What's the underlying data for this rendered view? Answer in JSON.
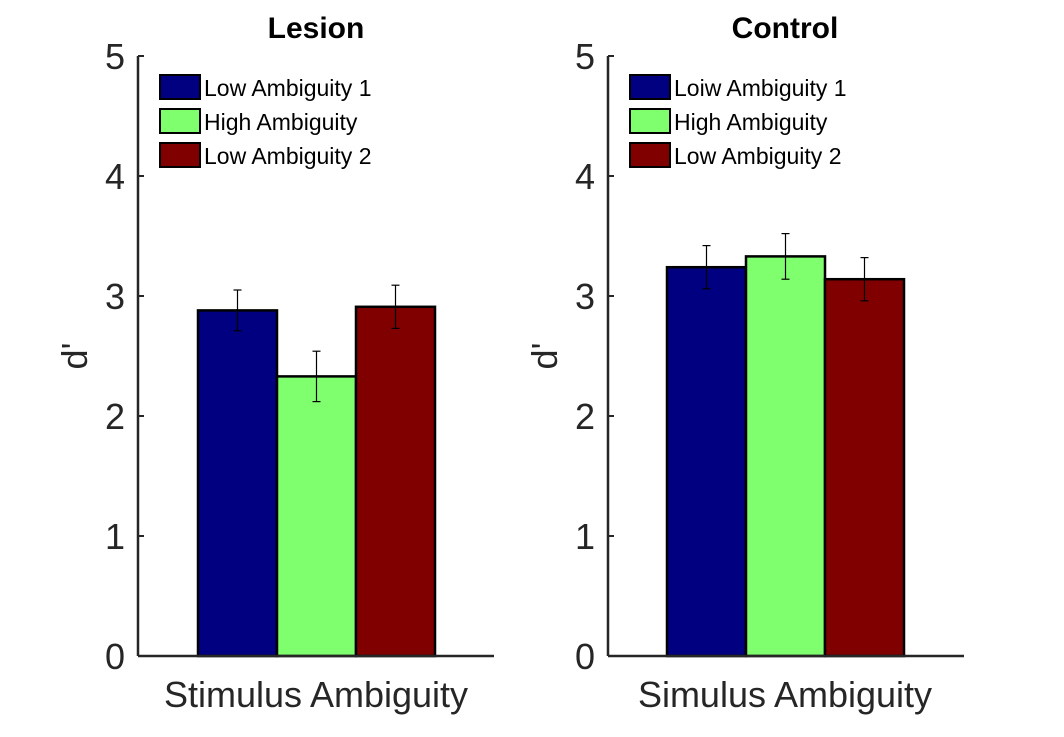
{
  "chart_data": [
    {
      "type": "bar",
      "title": "Lesion",
      "xlabel": "Stimulus Ambiguity",
      "ylabel": "d'",
      "ylim": [
        0,
        5
      ],
      "yticks": [
        "0",
        "1",
        "2",
        "3",
        "4",
        "5"
      ],
      "grid": false,
      "legend_position": "top-left",
      "series": [
        {
          "name": "Low Ambiguity 1",
          "value": 2.88,
          "error": 0.17,
          "color": "#000080"
        },
        {
          "name": "High Ambiguity",
          "value": 2.33,
          "error": 0.21,
          "color": "#80FF6E"
        },
        {
          "name": "Low Ambiguity 2",
          "value": 2.91,
          "error": 0.18,
          "color": "#800000"
        }
      ]
    },
    {
      "type": "bar",
      "title": "Control",
      "xlabel": "Simulus Ambiguity",
      "ylabel": "d'",
      "ylim": [
        0,
        5
      ],
      "yticks": [
        "0",
        "1",
        "2",
        "3",
        "4",
        "5"
      ],
      "grid": false,
      "legend_position": "top-left",
      "series": [
        {
          "name": "Loiw Ambiguity 1",
          "value": 3.24,
          "error": 0.18,
          "color": "#000080"
        },
        {
          "name": "High Ambiguity",
          "value": 3.33,
          "error": 0.19,
          "color": "#80FF6E"
        },
        {
          "name": "Low Ambiguity 2",
          "value": 3.14,
          "error": 0.18,
          "color": "#800000"
        }
      ]
    }
  ]
}
